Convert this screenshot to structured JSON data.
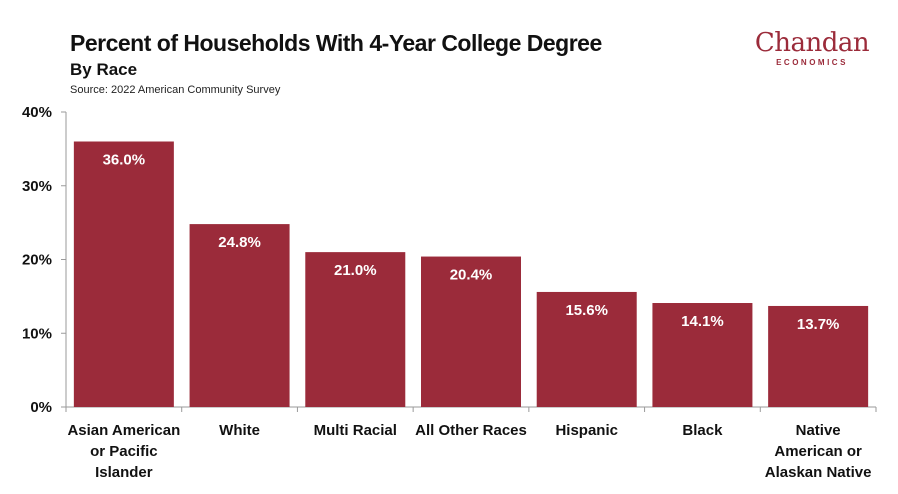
{
  "header": {
    "title": "Percent of Households With 4-Year College Degree",
    "subtitle": "By Race",
    "source": "Source: 2022 American Community Survey"
  },
  "logo": {
    "main": "Chandan",
    "sub": "ECONOMICS"
  },
  "colors": {
    "bar": "#9b2b3a",
    "axis": "#9a9a9a",
    "logo": "#9b2b3a"
  },
  "chart_data": {
    "type": "bar",
    "title": "Percent of Households With 4-Year College Degree",
    "subtitle": "By Race",
    "categories": [
      [
        "Asian American",
        "or Pacific",
        "Islander"
      ],
      [
        "White"
      ],
      [
        "Multi Racial"
      ],
      [
        "All Other Races"
      ],
      [
        "Hispanic"
      ],
      [
        "Black"
      ],
      [
        "Native",
        "American or",
        "Alaskan Native"
      ]
    ],
    "values": [
      36.0,
      24.8,
      21.0,
      20.4,
      15.6,
      14.1,
      13.7
    ],
    "data_labels": [
      "36.0%",
      "24.8%",
      "21.0%",
      "20.4%",
      "15.6%",
      "14.1%",
      "13.7%"
    ],
    "y_ticks": [
      0,
      10,
      20,
      30,
      40
    ],
    "y_tick_labels": [
      "0%",
      "10%",
      "20%",
      "30%",
      "40%"
    ],
    "ylim": [
      0,
      40
    ],
    "grid": false,
    "legend": "none",
    "xlabel": "",
    "ylabel": ""
  }
}
